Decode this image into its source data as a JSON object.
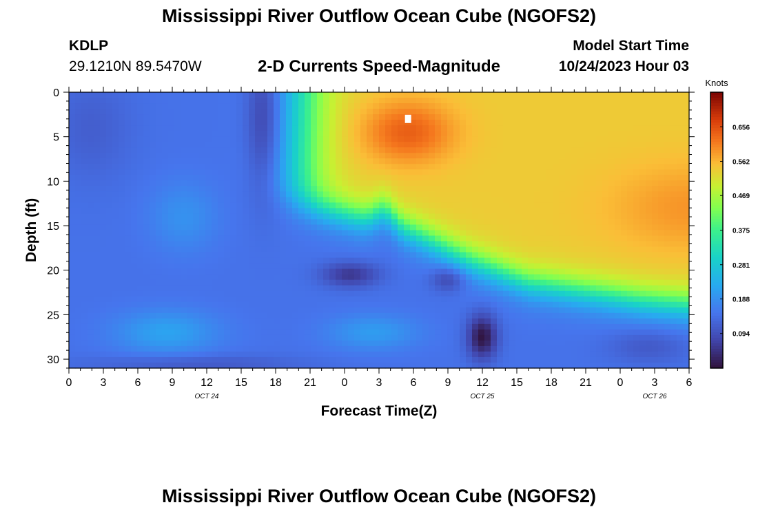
{
  "header": {
    "title": "Mississippi River Outflow Ocean Cube (NGOFS2)",
    "station_id": "KDLP",
    "station_location": "29.1210N  89.5470W",
    "subtitle": "2-D Currents Speed-Magnitude",
    "start_label": "Model Start Time",
    "start_value": "10/24/2023 Hour 03"
  },
  "footer": {
    "title": "Mississippi River Outflow Ocean Cube (NGOFS2)"
  },
  "chart_data": {
    "type": "heatmap",
    "title": "2-D Currents Speed-Magnitude",
    "xlabel": "Forecast Time(Z)",
    "ylabel": "Depth (ft)",
    "xlim": [
      0,
      54
    ],
    "ylim": [
      31,
      0
    ],
    "x_ticks": [
      0,
      3,
      6,
      9,
      12,
      15,
      18,
      21,
      24,
      27,
      30,
      33,
      36,
      39,
      42,
      45,
      48,
      51,
      54
    ],
    "x_tick_labels": [
      "0",
      "3",
      "6",
      "9",
      "12",
      "15",
      "18",
      "21",
      "0",
      "3",
      "6",
      "9",
      "12",
      "15",
      "18",
      "21",
      "0",
      "3",
      "6"
    ],
    "date_labels": [
      {
        "text": "OCT 24",
        "x": 12
      },
      {
        "text": "OCT 25",
        "x": 36
      },
      {
        "text": "OCT 26",
        "x": 51
      }
    ],
    "y_ticks": [
      0,
      5,
      10,
      15,
      20,
      25,
      30
    ],
    "y_tick_labels": [
      "0",
      "5",
      "10",
      "15",
      "20",
      "25",
      "30"
    ],
    "colorbar": {
      "label": "Knots",
      "min": 0,
      "max": 0.75,
      "ticks": [
        0.656,
        0.562,
        0.469,
        0.375,
        0.281,
        0.188,
        0.094
      ],
      "tick_labels": [
        "0.656",
        "0.562",
        "0.469",
        "0.375",
        "0.281",
        "0.188",
        "0.094"
      ]
    },
    "features": [
      {
        "type": "max",
        "x": 29.5,
        "y": 4.5,
        "sx": 4,
        "sy": 3.5,
        "amp": 0.1
      },
      {
        "type": "max",
        "x": 54,
        "y": 13,
        "sx": 7,
        "sy": 5,
        "amp": 0.05
      },
      {
        "type": "min",
        "x": 17,
        "y": 3,
        "sx": 1.5,
        "sy": 8,
        "amp": 0.08
      },
      {
        "type": "min",
        "x": 2,
        "y": 4,
        "sx": 3.5,
        "sy": 6,
        "amp": 0.03
      },
      {
        "type": "min",
        "x": 24.5,
        "y": 20.5,
        "sx": 2.5,
        "sy": 1.4,
        "amp": 0.09
      },
      {
        "type": "min",
        "x": 33,
        "y": 21,
        "sx": 1.5,
        "sy": 1.4,
        "amp": 0.07
      },
      {
        "type": "min",
        "x": 36,
        "y": 27.5,
        "sx": 1.3,
        "sy": 2.5,
        "amp": 0.14
      },
      {
        "type": "min",
        "x": 50.5,
        "y": 28.5,
        "sx": 3.5,
        "sy": 2,
        "amp": 0.04
      },
      {
        "type": "min",
        "x": 11,
        "y": 30.5,
        "sx": 9,
        "sy": 1,
        "amp": 0.04
      },
      {
        "type": "max",
        "x": 8.5,
        "y": 27,
        "sx": 4.5,
        "sy": 2.5,
        "amp": 0.07
      },
      {
        "type": "max",
        "x": 26.5,
        "y": 27,
        "sx": 4,
        "sy": 2,
        "amp": 0.06
      },
      {
        "type": "max",
        "x": 10,
        "y": 14,
        "sx": 3,
        "sy": 4,
        "amp": 0.045
      }
    ],
    "background_knots": 0.145,
    "front": {
      "knots": [
        [
          0,
          20.5
        ],
        [
          10,
          20.2
        ],
        [
          16,
          20
        ],
        [
          20,
          21
        ],
        [
          25,
          22
        ],
        [
          29,
          23
        ],
        [
          33,
          24
        ],
        [
          38,
          25
        ],
        [
          43,
          26
        ],
        [
          48,
          27
        ],
        [
          54,
          28
        ]
      ],
      "depth": [
        [
          0,
          1
        ],
        [
          5,
          3
        ],
        [
          10,
          7
        ],
        [
          15,
          10.5
        ],
        [
          20,
          12.5
        ],
        [
          25,
          14
        ],
        [
          30,
          15.8
        ],
        [
          35,
          19
        ],
        [
          40,
          21.5
        ],
        [
          45,
          22.5
        ],
        [
          50,
          23.5
        ],
        [
          54,
          24
        ]
      ],
      "bump_x": 27.5,
      "bump_depth": 1.5
    },
    "marker": {
      "type": "white-square",
      "x": 29.5,
      "y": 3
    }
  }
}
